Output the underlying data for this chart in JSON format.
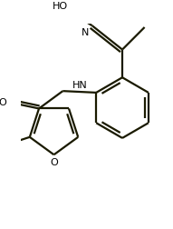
{
  "bg_color": "#ffffff",
  "line_color": "#1a1a00",
  "text_color": "#000000",
  "bond_lw": 1.6,
  "figsize": [
    1.91,
    2.53
  ],
  "dpi": 100,
  "xlim": [
    0,
    191
  ],
  "ylim": [
    0,
    253
  ]
}
